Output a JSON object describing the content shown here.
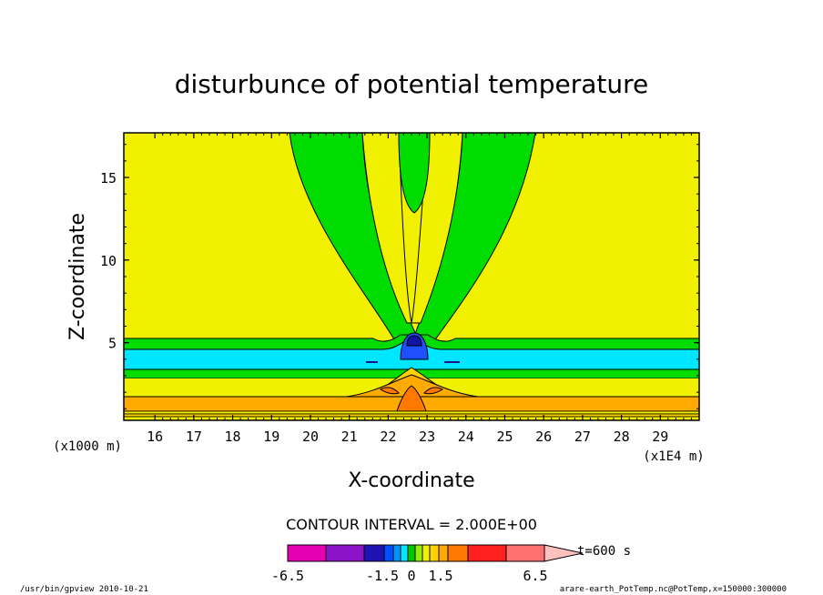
{
  "chart_data": {
    "type": "heatmap",
    "title": "disturbunce of potential temperature",
    "xlabel": "X-coordinate",
    "ylabel": "Z-coordinate",
    "x_unit_label": "(x1E4 m)",
    "y_unit_label": "(x1000 m)",
    "xlim": [
      15.2,
      30.0
    ],
    "ylim": [
      0.3,
      17.7
    ],
    "xticks": [
      "16",
      "17",
      "18",
      "19",
      "20",
      "21",
      "22",
      "23",
      "24",
      "25",
      "26",
      "27",
      "28",
      "29"
    ],
    "yticks": [
      "5",
      "10",
      "15"
    ],
    "contour_interval": "CONTOUR INTERVAL = 2.000E+00",
    "time": "t=600 s",
    "colorbar": {
      "colors": [
        "#e600b4",
        "#8c14c8",
        "#1e14b4",
        "#0050ff",
        "#0096ff",
        "#00e6ff",
        "#00c800",
        "#96f000",
        "#f0f000",
        "#ffd200",
        "#ffaa00",
        "#ff7800",
        "#ff2020",
        "#ff7070",
        "#ffc0c0"
      ],
      "labels": [
        "-6.5",
        "-1.5",
        "0",
        "1.5",
        "6.5"
      ]
    },
    "fill_colors": {
      "background": "#f0f000",
      "plume": "#00dc00",
      "cyan": "#00e6ff",
      "orange": "#ffaa00",
      "dark_orange": "#ff7800",
      "light_orange": "#ffd200",
      "blue": "#1e50ff",
      "navy": "#1414a0"
    }
  },
  "footer": {
    "left": "/usr/bin/gpview  2010-10-21",
    "right": "arare-earth_PotTemp.nc@PotTemp,x=150000:300000"
  }
}
